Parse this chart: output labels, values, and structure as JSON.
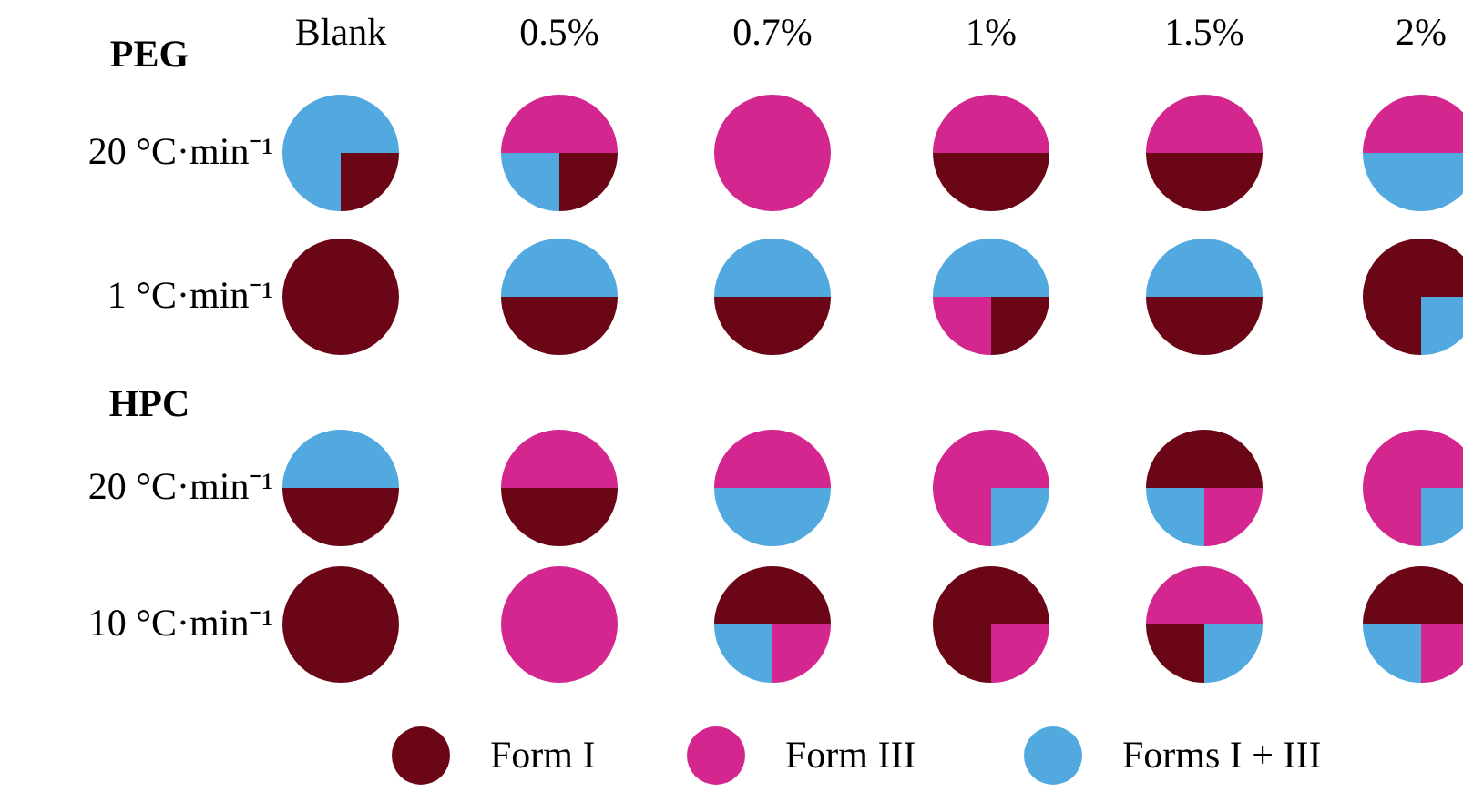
{
  "chart_data": [
    {
      "type": "other",
      "annotations": [
        "PEG",
        "HPC",
        "Blank",
        "0.5%",
        "0.7%",
        "1%",
        "1.5%",
        "2%",
        "20 °C·min⁻¹",
        "1 °C·min⁻¹",
        "20 °C·min⁻¹",
        "10 °C·min⁻¹"
      ],
      "categories": [
        "Form I",
        "Form III",
        "Forms I + III"
      ],
      "colors": [
        "#6b0616",
        "#d3268f",
        "#52a9e0"
      ]
    },
    {
      "type": "pie",
      "values": [
        25,
        75
      ],
      "colors": [
        "#6b0616",
        "#52a9e0"
      ]
    },
    {
      "type": "pie",
      "values": [
        25,
        25,
        50
      ],
      "colors": [
        "#6b0616",
        "#52a9e0",
        "#d3268f"
      ]
    },
    {
      "type": "pie",
      "values": [
        100
      ],
      "colors": [
        "#d3268f"
      ]
    },
    {
      "type": "pie",
      "values": [
        50,
        50
      ],
      "colors": [
        "#6b0616",
        "#d3268f"
      ]
    },
    {
      "type": "pie",
      "values": [
        50,
        50
      ],
      "colors": [
        "#6b0616",
        "#d3268f"
      ]
    },
    {
      "type": "pie",
      "values": [
        50,
        50
      ],
      "colors": [
        "#52a9e0",
        "#d3268f"
      ]
    },
    {
      "type": "pie",
      "values": [
        100
      ],
      "colors": [
        "#6b0616"
      ]
    },
    {
      "type": "pie",
      "values": [
        50,
        50
      ],
      "colors": [
        "#6b0616",
        "#52a9e0"
      ]
    },
    {
      "type": "pie",
      "values": [
        50,
        50
      ],
      "colors": [
        "#6b0616",
        "#52a9e0"
      ]
    },
    {
      "type": "pie",
      "values": [
        25,
        25,
        50
      ],
      "colors": [
        "#6b0616",
        "#d3268f",
        "#52a9e0"
      ]
    },
    {
      "type": "pie",
      "values": [
        50,
        50
      ],
      "colors": [
        "#6b0616",
        "#52a9e0"
      ]
    },
    {
      "type": "pie",
      "values": [
        25,
        75
      ],
      "colors": [
        "#52a9e0",
        "#6b0616"
      ]
    },
    {
      "type": "pie",
      "values": [
        50,
        50
      ],
      "colors": [
        "#6b0616",
        "#52a9e0"
      ]
    },
    {
      "type": "pie",
      "values": [
        50,
        50
      ],
      "colors": [
        "#6b0616",
        "#d3268f"
      ]
    },
    {
      "type": "pie",
      "values": [
        50,
        50
      ],
      "colors": [
        "#52a9e0",
        "#d3268f"
      ]
    },
    {
      "type": "pie",
      "values": [
        25,
        75
      ],
      "colors": [
        "#52a9e0",
        "#d3268f"
      ]
    },
    {
      "type": "pie",
      "values": [
        25,
        25,
        50
      ],
      "colors": [
        "#d3268f",
        "#52a9e0",
        "#6b0616"
      ]
    },
    {
      "type": "pie",
      "values": [
        25,
        75
      ],
      "colors": [
        "#52a9e0",
        "#d3268f"
      ]
    },
    {
      "type": "pie",
      "values": [
        100
      ],
      "colors": [
        "#6b0616"
      ]
    },
    {
      "type": "pie",
      "values": [
        100
      ],
      "colors": [
        "#d3268f"
      ]
    },
    {
      "type": "pie",
      "values": [
        25,
        25,
        50
      ],
      "colors": [
        "#d3268f",
        "#52a9e0",
        "#6b0616"
      ]
    },
    {
      "type": "pie",
      "values": [
        25,
        75
      ],
      "colors": [
        "#d3268f",
        "#6b0616"
      ]
    },
    {
      "type": "pie",
      "values": [
        25,
        25,
        50
      ],
      "colors": [
        "#52a9e0",
        "#6b0616",
        "#d3268f"
      ]
    },
    {
      "type": "pie",
      "values": [
        25,
        25,
        50
      ],
      "colors": [
        "#d3268f",
        "#52a9e0",
        "#6b0616"
      ]
    }
  ]
}
